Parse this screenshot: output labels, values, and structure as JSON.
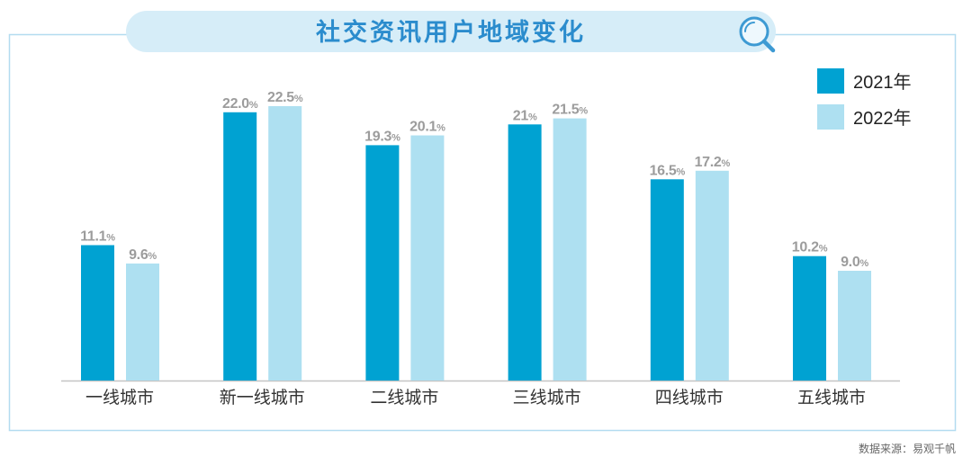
{
  "source": "数据来源：易观千帆",
  "colors": {
    "title": "#2b8ccd",
    "title_pill": "#d6edf8",
    "frame": "#b3dcf0",
    "icon": "#3d9ad3",
    "data_label": "#9c9c9c",
    "axis": "#c4c4c4"
  },
  "icons": {
    "title_icon": "magnifier-icon"
  },
  "chart_data": {
    "type": "bar",
    "title": "社交资讯用户地域变化",
    "xlabel": "",
    "ylabel": "",
    "categories": [
      "一线城市",
      "新一线城市",
      "二线城市",
      "三线城市",
      "四线城市",
      "五线城市"
    ],
    "series": [
      {
        "name": "2021年",
        "color": "#00a2d2",
        "values": [
          11.1,
          22.0,
          19.3,
          21,
          16.5,
          10.2
        ],
        "labels": [
          "11.1",
          "22.0",
          "19.3",
          "21",
          "16.5",
          "10.2"
        ]
      },
      {
        "name": "2022年",
        "color": "#aee0f1",
        "values": [
          9.6,
          22.5,
          20.1,
          21.5,
          17.2,
          9.0
        ],
        "labels": [
          "9.6",
          "22.5",
          "20.1",
          "21.5",
          "17.2",
          "9.0"
        ]
      }
    ],
    "unit": "%",
    "ylim": [
      0,
      22.5
    ],
    "grid": false,
    "legend": "top-right"
  }
}
